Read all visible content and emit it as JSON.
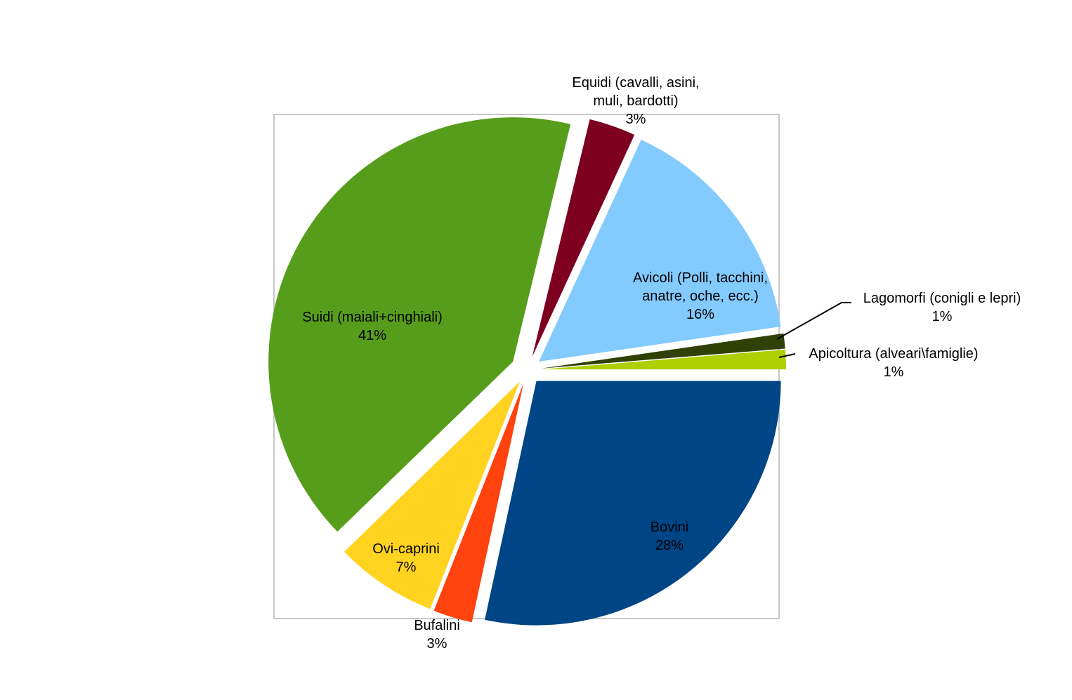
{
  "chart_data": {
    "type": "pie",
    "title": "",
    "exploded": true,
    "slices": [
      {
        "label_lines": [
          "Bovini"
        ],
        "percent_label": "28%",
        "value": 28.5,
        "color": "#004586"
      },
      {
        "label_lines": [
          "Bufalini"
        ],
        "percent_label": "3%",
        "value": 2.6,
        "color": "#ff420e"
      },
      {
        "label_lines": [
          "Ovi-caprini"
        ],
        "percent_label": "7%",
        "value": 6.8,
        "color": "#ffd320"
      },
      {
        "label_lines": [
          "Suidi (maiali+cinghiali)"
        ],
        "percent_label": "41%",
        "value": 41.2,
        "color": "#579d1c"
      },
      {
        "label_lines": [
          "Equidi  (cavalli, asini,",
          "muli, bardotti)"
        ],
        "percent_label": "3%",
        "value": 3.1,
        "color": "#7e0021"
      },
      {
        "label_lines": [
          "Avicoli (Polli, tacchini,",
          "anatre, oche, ecc.)"
        ],
        "percent_label": "16%",
        "value": 15.9,
        "color": "#83caff"
      },
      {
        "label_lines": [
          "Lagomorfi (conigli e lepri)"
        ],
        "percent_label": "1%",
        "value": 1.0,
        "color": "#314004"
      },
      {
        "label_lines": [
          "Apicoltura (alveari\\famiglie)"
        ],
        "percent_label": "1%",
        "value": 1.3,
        "color": "#aecf00"
      }
    ]
  }
}
